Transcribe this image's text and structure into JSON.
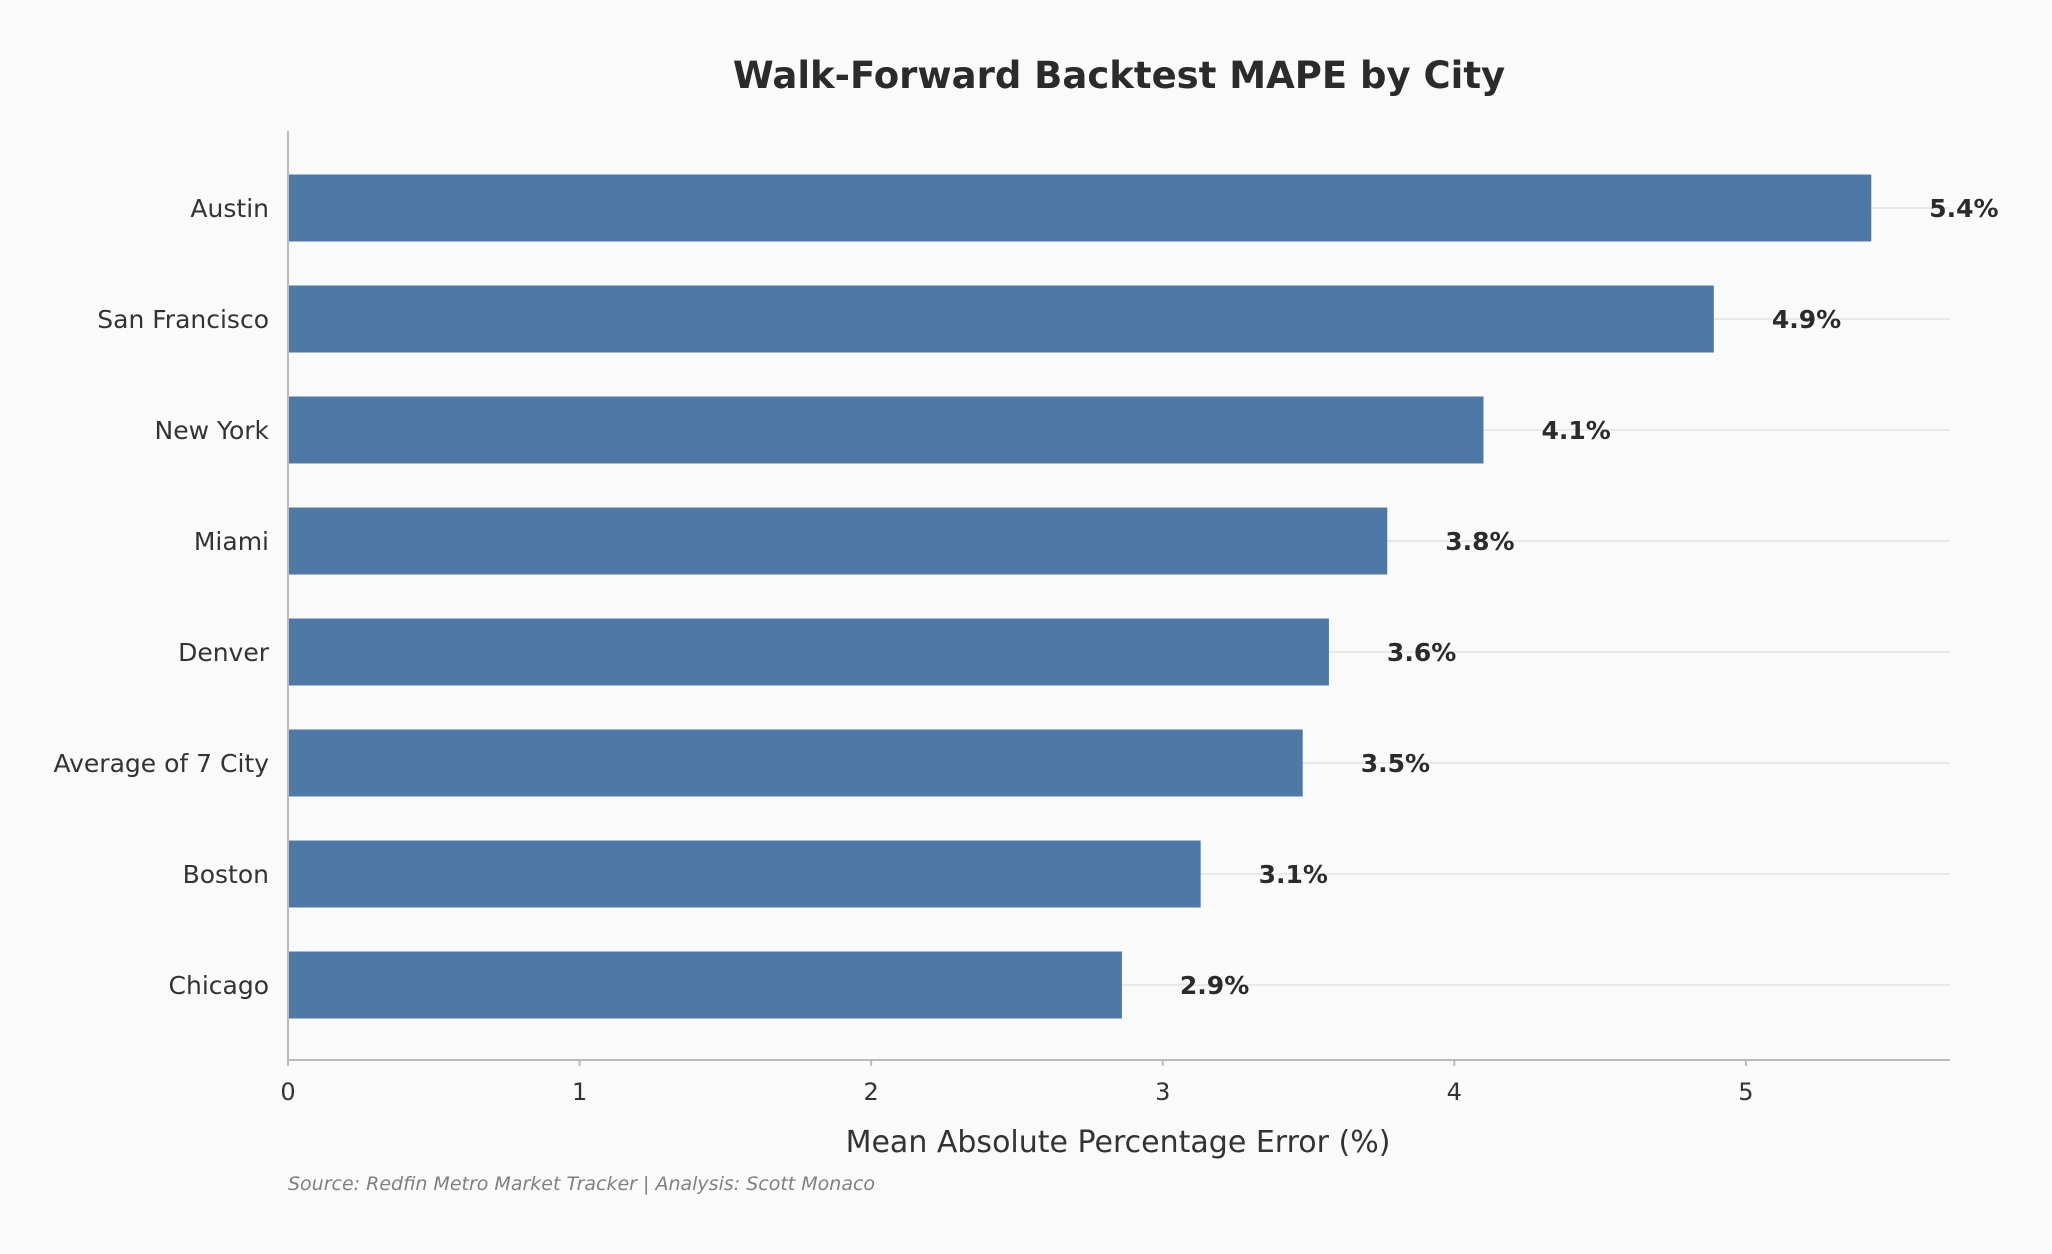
{
  "chart_data": {
    "type": "bar",
    "orientation": "horizontal",
    "title": "Walk-Forward Backtest MAPE by City",
    "xlabel": "Mean Absolute Percentage Error (%)",
    "ylabel": "",
    "categories": [
      "Austin",
      "San Francisco",
      "New York",
      "Miami",
      "Denver",
      "Average of 7 City",
      "Boston",
      "Chicago"
    ],
    "values": [
      5.43,
      4.89,
      4.1,
      3.77,
      3.57,
      3.48,
      3.13,
      2.86
    ],
    "value_labels": [
      "5.4%",
      "4.9%",
      "4.1%",
      "3.8%",
      "3.6%",
      "3.5%",
      "3.1%",
      "2.9%"
    ],
    "xlim": [
      0,
      5.7
    ],
    "xticks": [
      0,
      1,
      2,
      3,
      4,
      5
    ],
    "xtick_labels": [
      "0",
      "1",
      "2",
      "3",
      "4",
      "5"
    ],
    "grid": "horizontal-light",
    "legend": "none",
    "bar_color": "#4e79a7",
    "source": "Source: Redfin Metro Market Tracker | Analysis: Scott Monaco"
  }
}
